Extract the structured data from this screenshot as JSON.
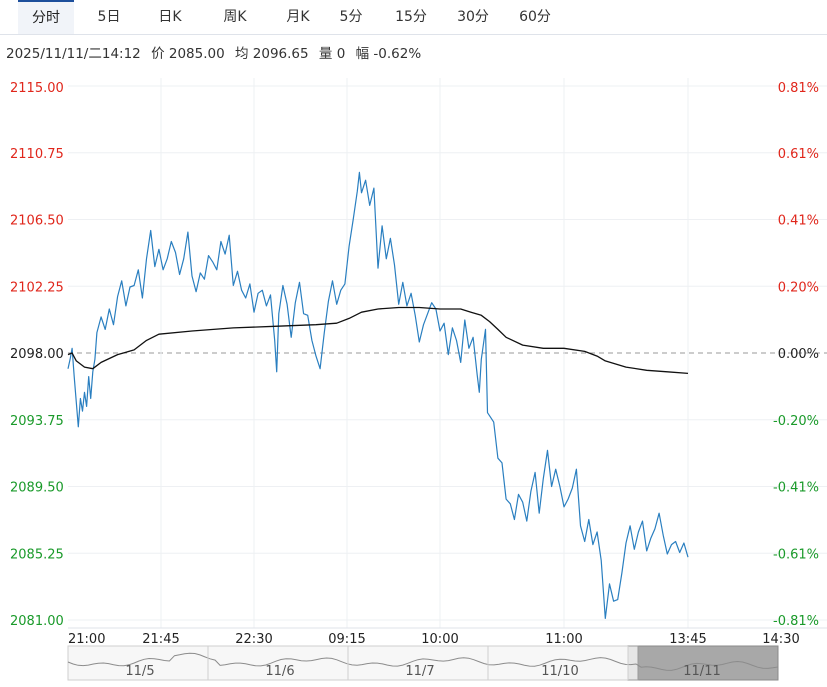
{
  "tabs": [
    {
      "label": "分时",
      "active": true
    },
    {
      "label": "5日",
      "active": false
    },
    {
      "label": "日K",
      "active": false
    },
    {
      "label": "周K",
      "active": false
    },
    {
      "label": "月K",
      "active": false
    },
    {
      "label": "5分",
      "active": false
    },
    {
      "label": "15分",
      "active": false
    },
    {
      "label": "30分",
      "active": false
    },
    {
      "label": "60分",
      "active": false
    }
  ],
  "info": {
    "datetime": "2025/11/11/二14:12",
    "price": "价 2085.00",
    "avg": "均 2096.65",
    "volume": "量 0",
    "change": "幅 -0.62%"
  },
  "colors": {
    "up": "#e0261b",
    "down": "#1a9a2a",
    "price_line": "#2a7fc0",
    "avg_line": "#111111",
    "grid": "#eef0f3",
    "baseline": "#999999"
  },
  "chart_data": {
    "type": "line",
    "prev_close": 2098.0,
    "ylim": [
      2081.0,
      2115.0
    ],
    "y_ticks": [
      "2115.00",
      "2110.75",
      "2106.50",
      "2102.25",
      "2098.00",
      "2093.75",
      "2089.50",
      "2085.25",
      "2081.00"
    ],
    "pct_ticks": [
      "0.81%",
      "0.61%",
      "0.41%",
      "0.20%",
      "0.00%",
      "-0.20%",
      "-0.41%",
      "-0.61%",
      "-0.81%"
    ],
    "x_ticks": [
      "21:00",
      "21:45",
      "22:30",
      "09:15",
      "10:00",
      "11:00",
      "13:45",
      "14:30"
    ],
    "session_minutes": 345,
    "series": [
      {
        "key": "price",
        "points": [
          [
            0,
            2097.0
          ],
          [
            1,
            2097.6
          ],
          [
            2,
            2098.3
          ],
          [
            3,
            2096.5
          ],
          [
            5,
            2093.3
          ],
          [
            6,
            2095.1
          ],
          [
            7,
            2094.3
          ],
          [
            8,
            2095.5
          ],
          [
            9,
            2094.6
          ],
          [
            10,
            2096.5
          ],
          [
            11,
            2095.1
          ],
          [
            12,
            2096.8
          ],
          [
            13,
            2097.6
          ],
          [
            14,
            2099.3
          ],
          [
            16,
            2100.3
          ],
          [
            18,
            2099.5
          ],
          [
            20,
            2100.8
          ],
          [
            22,
            2099.8
          ],
          [
            24,
            2101.6
          ],
          [
            26,
            2102.6
          ],
          [
            28,
            2101.0
          ],
          [
            30,
            2102.2
          ],
          [
            32,
            2102.3
          ],
          [
            34,
            2103.3
          ],
          [
            36,
            2101.5
          ],
          [
            38,
            2104.0
          ],
          [
            40,
            2105.8
          ],
          [
            42,
            2103.5
          ],
          [
            44,
            2104.6
          ],
          [
            46,
            2103.3
          ],
          [
            48,
            2104.0
          ],
          [
            50,
            2105.1
          ],
          [
            52,
            2104.4
          ],
          [
            54,
            2103.0
          ],
          [
            56,
            2104.0
          ],
          [
            58,
            2105.7
          ],
          [
            60,
            2102.9
          ],
          [
            62,
            2101.9
          ],
          [
            64,
            2103.1
          ],
          [
            66,
            2102.7
          ],
          [
            68,
            2104.2
          ],
          [
            70,
            2103.8
          ],
          [
            72,
            2103.3
          ],
          [
            74,
            2105.1
          ],
          [
            76,
            2104.3
          ],
          [
            78,
            2105.5
          ],
          [
            80,
            2102.3
          ],
          [
            82,
            2103.2
          ],
          [
            84,
            2102.0
          ],
          [
            86,
            2101.5
          ],
          [
            88,
            2102.4
          ],
          [
            90,
            2100.6
          ],
          [
            92,
            2101.8
          ],
          [
            94,
            2102.0
          ],
          [
            96,
            2101.0
          ],
          [
            98,
            2101.7
          ],
          [
            100,
            2098.8
          ],
          [
            101,
            2096.8
          ],
          [
            102,
            2100.5
          ],
          [
            104,
            2102.3
          ],
          [
            106,
            2101.1
          ],
          [
            108,
            2099.0
          ],
          [
            110,
            2101.2
          ],
          [
            112,
            2102.5
          ],
          [
            114,
            2100.5
          ],
          [
            116,
            2100.4
          ],
          [
            118,
            2098.8
          ],
          [
            120,
            2097.8
          ],
          [
            122,
            2097.0
          ],
          [
            124,
            2099.3
          ],
          [
            126,
            2101.3
          ],
          [
            128,
            2102.6
          ],
          [
            130,
            2101.1
          ],
          [
            132,
            2102.0
          ],
          [
            134,
            2102.4
          ],
          [
            136,
            2104.8
          ],
          [
            138,
            2106.5
          ],
          [
            140,
            2108.3
          ],
          [
            141,
            2109.5
          ],
          [
            142,
            2108.2
          ],
          [
            144,
            2109.0
          ],
          [
            146,
            2107.4
          ],
          [
            148,
            2108.5
          ],
          [
            150,
            2103.4
          ],
          [
            152,
            2106.1
          ],
          [
            154,
            2104.0
          ],
          [
            156,
            2105.3
          ],
          [
            158,
            2103.6
          ],
          [
            160,
            2101.1
          ],
          [
            162,
            2102.5
          ],
          [
            164,
            2101.0
          ],
          [
            166,
            2101.8
          ],
          [
            168,
            2100.4
          ],
          [
            170,
            2098.7
          ],
          [
            172,
            2099.8
          ],
          [
            174,
            2100.5
          ],
          [
            176,
            2101.2
          ],
          [
            178,
            2100.8
          ],
          [
            180,
            2099.4
          ],
          [
            182,
            2099.9
          ],
          [
            184,
            2097.9
          ],
          [
            186,
            2099.6
          ],
          [
            188,
            2098.8
          ],
          [
            190,
            2097.4
          ],
          [
            192,
            2100.1
          ],
          [
            194,
            2098.3
          ],
          [
            196,
            2099.0
          ],
          [
            198,
            2096.6
          ],
          [
            199,
            2095.5
          ],
          [
            200,
            2097.6
          ],
          [
            202,
            2099.5
          ],
          [
            203,
            2094.2
          ],
          [
            204,
            2094.0
          ],
          [
            206,
            2093.6
          ],
          [
            208,
            2091.3
          ],
          [
            210,
            2091.0
          ],
          [
            212,
            2088.7
          ],
          [
            214,
            2088.4
          ],
          [
            216,
            2087.4
          ],
          [
            218,
            2089.0
          ],
          [
            220,
            2088.5
          ],
          [
            222,
            2087.3
          ],
          [
            224,
            2089.2
          ],
          [
            226,
            2090.4
          ],
          [
            228,
            2087.8
          ],
          [
            230,
            2090.0
          ],
          [
            232,
            2091.8
          ],
          [
            234,
            2089.5
          ],
          [
            236,
            2090.6
          ],
          [
            238,
            2089.5
          ],
          [
            240,
            2088.2
          ],
          [
            242,
            2088.7
          ],
          [
            244,
            2089.4
          ],
          [
            246,
            2090.6
          ],
          [
            248,
            2087.0
          ],
          [
            250,
            2086.0
          ],
          [
            252,
            2087.4
          ],
          [
            254,
            2085.8
          ],
          [
            256,
            2086.6
          ],
          [
            258,
            2084.8
          ],
          [
            260,
            2081.1
          ],
          [
            262,
            2083.3
          ],
          [
            264,
            2082.2
          ],
          [
            266,
            2082.3
          ],
          [
            268,
            2084.0
          ],
          [
            270,
            2085.9
          ],
          [
            272,
            2087.0
          ],
          [
            274,
            2085.5
          ],
          [
            276,
            2086.6
          ],
          [
            278,
            2087.3
          ],
          [
            280,
            2085.4
          ],
          [
            282,
            2086.2
          ],
          [
            284,
            2086.8
          ],
          [
            286,
            2087.8
          ],
          [
            288,
            2086.4
          ],
          [
            290,
            2085.2
          ],
          [
            292,
            2085.8
          ],
          [
            294,
            2086.0
          ],
          [
            296,
            2085.3
          ],
          [
            298,
            2085.9
          ],
          [
            300,
            2085.0
          ]
        ]
      },
      {
        "key": "avg",
        "points": [
          [
            0,
            2097.9
          ],
          [
            2,
            2098.0
          ],
          [
            4,
            2097.5
          ],
          [
            8,
            2097.1
          ],
          [
            12,
            2097.0
          ],
          [
            16,
            2097.4
          ],
          [
            24,
            2097.9
          ],
          [
            32,
            2098.2
          ],
          [
            38,
            2098.8
          ],
          [
            44,
            2099.2
          ],
          [
            60,
            2099.4
          ],
          [
            80,
            2099.6
          ],
          [
            100,
            2099.7
          ],
          [
            120,
            2099.8
          ],
          [
            130,
            2099.9
          ],
          [
            136,
            2100.2
          ],
          [
            142,
            2100.6
          ],
          [
            150,
            2100.8
          ],
          [
            160,
            2100.9
          ],
          [
            170,
            2100.9
          ],
          [
            180,
            2100.8
          ],
          [
            190,
            2100.8
          ],
          [
            195,
            2100.6
          ],
          [
            200,
            2100.4
          ],
          [
            204,
            2100.0
          ],
          [
            208,
            2099.5
          ],
          [
            212,
            2099.0
          ],
          [
            220,
            2098.5
          ],
          [
            230,
            2098.3
          ],
          [
            240,
            2098.3
          ],
          [
            250,
            2098.1
          ],
          [
            256,
            2097.8
          ],
          [
            260,
            2097.5
          ],
          [
            270,
            2097.1
          ],
          [
            280,
            2096.9
          ],
          [
            290,
            2096.8
          ],
          [
            300,
            2096.7
          ]
        ]
      }
    ]
  },
  "navigator": {
    "dates": [
      "11/5",
      "11/6",
      "11/7",
      "11/10",
      "11/11"
    ]
  }
}
